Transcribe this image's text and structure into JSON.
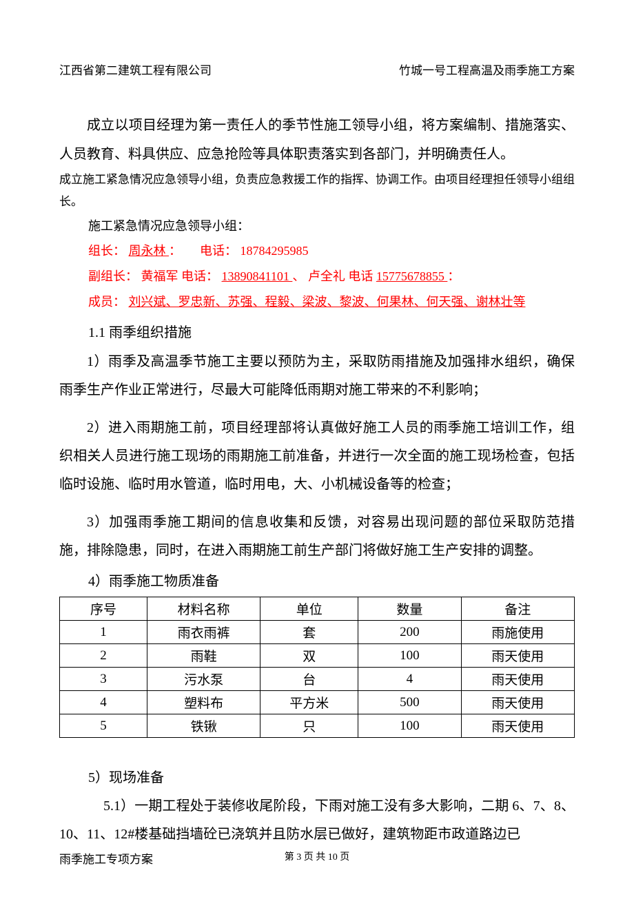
{
  "header": {
    "company": "江西省第二建筑工程有限公司",
    "project": "竹城一号工程高温及雨季施工方案"
  },
  "p1": "成立以项目经理为第一责任人的季节性施工领导小组，将方案编制、措施落实、人员教育、料具供应、应急抢险等具体职责落实到各部门，并明确责任人。",
  "p2": "成立施工紧急情况应急领导小组，负责应急救援工作的指挥、协调工作。由项目经理担任领导小组组长。",
  "p3": "施工紧急情况应急领导小组：",
  "org": {
    "leader_label": "组长：",
    "leader_name": "  周永林     ",
    "colon": "：",
    "tel_label": "电话：",
    "leader_tel": "18784295985",
    "vice_label": "副组长：",
    "vice1_name": " 黄福军 ",
    "vice1_tel_label": "电话：",
    "vice1_tel": " 13890841101 ",
    "sep": "、",
    "vice2_name": "卢全礼 ",
    "vice2_tel_label": "电话",
    "vice2_tel": " 15775678855 ",
    "colon2": "：",
    "member_label": "成员：",
    "members": " 刘兴斌、罗忠新、苏强、程毅、梁波、黎波、何果林、何天强、谢林壮等 "
  },
  "section_1_1": "1.1 雨季组织措施",
  "item1": "1）雨季及高温季节施工主要以预防为主，采取防雨措施及加强排水组织，确保雨季生产作业正常进行，尽最大可能降低雨期对施工带来的不利影响；",
  "item2": "2）进入雨期施工前，项目经理部将认真做好施工人员的雨季施工培训工作，组织相关人员进行施工现场的雨期施工前准备，并进行一次全面的施工现场检查，包括临时设施、临时用水管道，临时用电，大、小机械设备等的检查；",
  "item3": "3）加强雨季施工期间的信息收集和反馈，对容易出现问题的部位采取防范措施，排除隐患，同时，在进入雨期施工前生产部门将做好施工生产安排的调整。",
  "item4": "4）雨季施工物质准备",
  "table": {
    "headers": [
      "序号",
      "材料名称",
      "单位",
      "数量",
      "备注"
    ],
    "rows": [
      [
        "1",
        "雨衣雨裤",
        "套",
        "200",
        "雨施使用"
      ],
      [
        "2",
        "雨鞋",
        "双",
        "100",
        "雨天使用"
      ],
      [
        "3",
        "污水泵",
        "台",
        "4",
        "雨天使用"
      ],
      [
        "4",
        "塑料布",
        "平方米",
        "500",
        "雨天使用"
      ],
      [
        "5",
        "铁锹",
        "只",
        "100",
        "雨天使用"
      ]
    ]
  },
  "item5": "5）现场准备",
  "item5_1": "5.1）一期工程处于装修收尾阶段，下雨对施工没有多大影响，二期 6、7、8、10、11、12#楼基础挡墙砼已浇筑并且防水层已做好，建筑物距市政道路边已",
  "footer": {
    "left": "雨季施工专项方案",
    "center": "第 3 页 共 10 页"
  }
}
